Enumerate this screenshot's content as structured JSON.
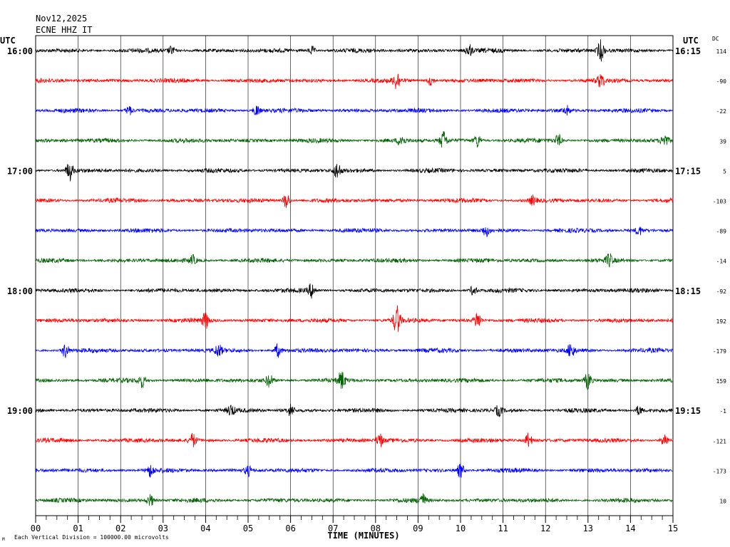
{
  "header": {
    "date": "Nov12,2025",
    "station": "ECNE HHZ IT"
  },
  "left_axis_title": "UTC",
  "right_axis_title": "UTC",
  "dc_title": "DC",
  "footer": {
    "xlabel": "TIME (MINUTES)",
    "scale_note": "Each Vertical Division = 100000.00 microvolts"
  },
  "chart_data": {
    "type": "line",
    "title": "",
    "xlabel": "TIME (MINUTES)",
    "xlim": [
      0,
      15
    ],
    "x_ticks": [
      "00",
      "01",
      "02",
      "03",
      "04",
      "05",
      "06",
      "07",
      "08",
      "09",
      "10",
      "11",
      "12",
      "13",
      "14",
      "15"
    ],
    "trace_colors": [
      "#000000",
      "#ff0000",
      "#0000ff",
      "#006400"
    ],
    "rows": [
      {
        "left": "16:00",
        "right": "16:15",
        "dc": "114"
      },
      {
        "left": "",
        "right": "",
        "dc": "-90"
      },
      {
        "left": "",
        "right": "",
        "dc": "-22"
      },
      {
        "left": "",
        "right": "",
        "dc": "39"
      },
      {
        "left": "17:00",
        "right": "17:15",
        "dc": "5"
      },
      {
        "left": "",
        "right": "",
        "dc": "-103"
      },
      {
        "left": "",
        "right": "",
        "dc": "-89"
      },
      {
        "left": "",
        "right": "",
        "dc": "-14"
      },
      {
        "left": "18:00",
        "right": "18:15",
        "dc": "-92"
      },
      {
        "left": "",
        "right": "",
        "dc": "192"
      },
      {
        "left": "",
        "right": "",
        "dc": "-179"
      },
      {
        "left": "",
        "right": "",
        "dc": "159"
      },
      {
        "left": "19:00",
        "right": "19:15",
        "dc": "-1"
      },
      {
        "left": "",
        "right": "",
        "dc": "-121"
      },
      {
        "left": "",
        "right": "",
        "dc": "-173"
      },
      {
        "left": "",
        "right": "",
        "dc": "10"
      }
    ],
    "events": [
      {
        "row": 0,
        "minute": 3.2,
        "amp": 6
      },
      {
        "row": 0,
        "minute": 6.5,
        "amp": 6
      },
      {
        "row": 0,
        "minute": 10.2,
        "amp": 8
      },
      {
        "row": 0,
        "minute": 13.3,
        "amp": 14
      },
      {
        "row": 1,
        "minute": 8.5,
        "amp": 12
      },
      {
        "row": 1,
        "minute": 9.3,
        "amp": 7
      },
      {
        "row": 1,
        "minute": 13.3,
        "amp": 9
      },
      {
        "row": 2,
        "minute": 2.2,
        "amp": 6
      },
      {
        "row": 2,
        "minute": 5.2,
        "amp": 8
      },
      {
        "row": 2,
        "minute": 12.5,
        "amp": 6
      },
      {
        "row": 3,
        "minute": 8.6,
        "amp": 8
      },
      {
        "row": 3,
        "minute": 9.6,
        "amp": 13
      },
      {
        "row": 3,
        "minute": 10.4,
        "amp": 9
      },
      {
        "row": 3,
        "minute": 12.3,
        "amp": 8
      },
      {
        "row": 3,
        "minute": 14.8,
        "amp": 8
      },
      {
        "row": 4,
        "minute": 0.8,
        "amp": 13
      },
      {
        "row": 4,
        "minute": 7.1,
        "amp": 11
      },
      {
        "row": 5,
        "minute": 5.9,
        "amp": 11
      },
      {
        "row": 5,
        "minute": 11.7,
        "amp": 6
      },
      {
        "row": 6,
        "minute": 10.6,
        "amp": 7
      },
      {
        "row": 6,
        "minute": 14.2,
        "amp": 6
      },
      {
        "row": 7,
        "minute": 3.7,
        "amp": 6
      },
      {
        "row": 7,
        "minute": 13.5,
        "amp": 8
      },
      {
        "row": 8,
        "minute": 6.5,
        "amp": 10
      },
      {
        "row": 8,
        "minute": 10.3,
        "amp": 7
      },
      {
        "row": 9,
        "minute": 4.0,
        "amp": 11
      },
      {
        "row": 9,
        "minute": 8.5,
        "amp": 20
      },
      {
        "row": 9,
        "minute": 10.4,
        "amp": 12
      },
      {
        "row": 10,
        "minute": 0.7,
        "amp": 10
      },
      {
        "row": 10,
        "minute": 4.3,
        "amp": 8
      },
      {
        "row": 10,
        "minute": 5.7,
        "amp": 9
      },
      {
        "row": 10,
        "minute": 12.6,
        "amp": 10
      },
      {
        "row": 11,
        "minute": 2.5,
        "amp": 9
      },
      {
        "row": 11,
        "minute": 5.5,
        "amp": 9
      },
      {
        "row": 11,
        "minute": 7.2,
        "amp": 12
      },
      {
        "row": 11,
        "minute": 13.0,
        "amp": 12
      },
      {
        "row": 12,
        "minute": 4.6,
        "amp": 7
      },
      {
        "row": 12,
        "minute": 6.0,
        "amp": 8
      },
      {
        "row": 12,
        "minute": 10.9,
        "amp": 7
      },
      {
        "row": 12,
        "minute": 14.2,
        "amp": 6
      },
      {
        "row": 13,
        "minute": 3.7,
        "amp": 9
      },
      {
        "row": 13,
        "minute": 8.1,
        "amp": 9
      },
      {
        "row": 13,
        "minute": 11.6,
        "amp": 10
      },
      {
        "row": 13,
        "minute": 14.8,
        "amp": 10
      },
      {
        "row": 14,
        "minute": 2.7,
        "amp": 8
      },
      {
        "row": 14,
        "minute": 5.0,
        "amp": 7
      },
      {
        "row": 14,
        "minute": 10.0,
        "amp": 10
      },
      {
        "row": 15,
        "minute": 2.7,
        "amp": 8
      },
      {
        "row": 15,
        "minute": 9.1,
        "amp": 9
      }
    ]
  }
}
